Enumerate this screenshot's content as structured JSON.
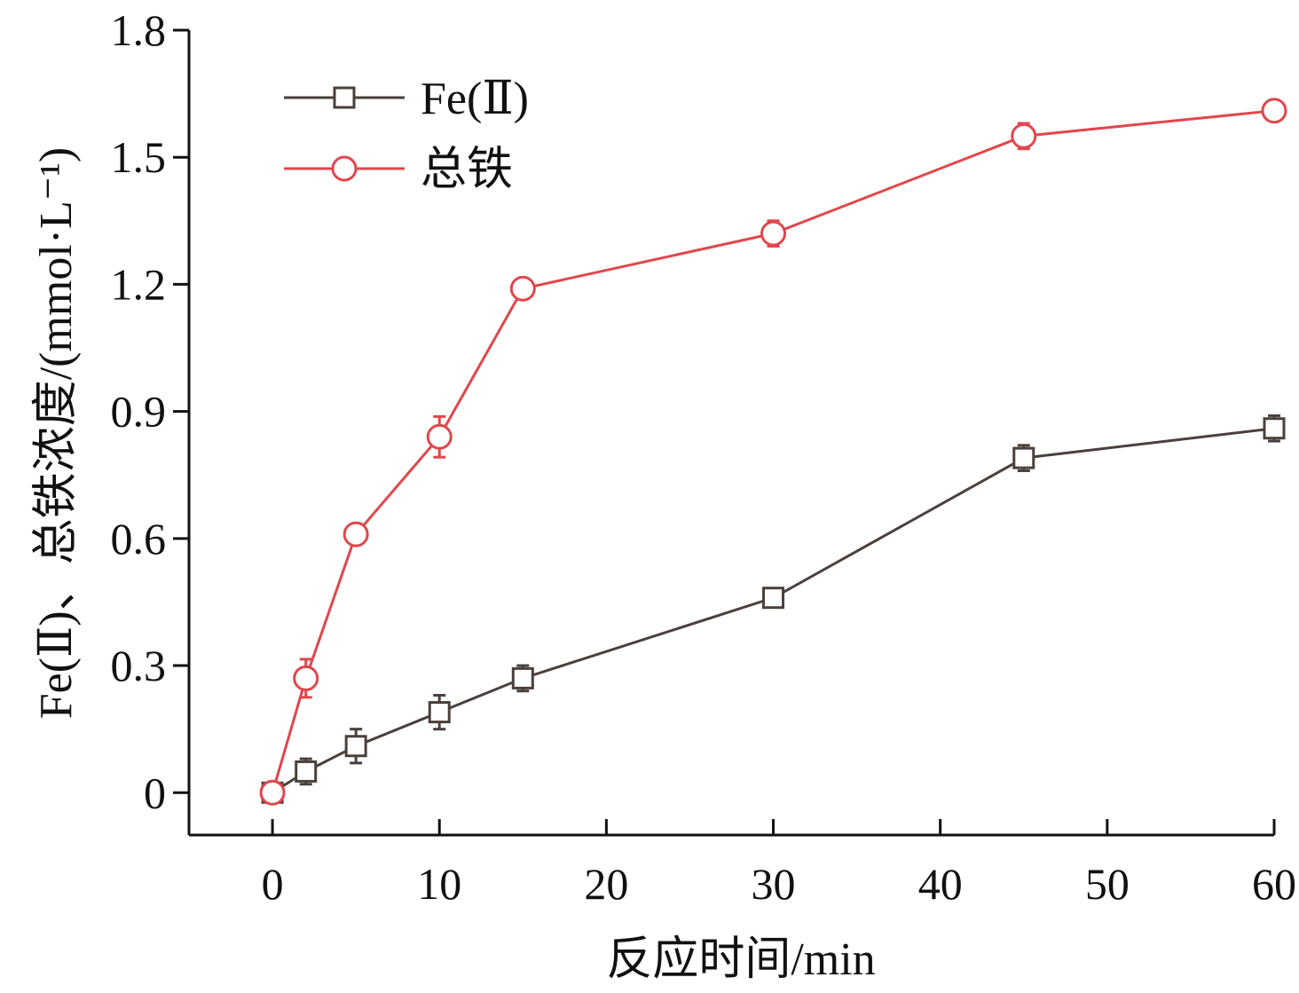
{
  "chart_data": {
    "type": "line",
    "title": "",
    "xlabel": "反应时间/min",
    "ylabel": "Fe(Ⅱ)、总铁浓度/(mmol·L⁻¹)",
    "xlim": [
      -5,
      60
    ],
    "ylim": [
      -0.1,
      1.8
    ],
    "xticks": [
      0,
      10,
      20,
      30,
      40,
      50,
      60
    ],
    "xtick_labels": [
      "0",
      "10",
      "20",
      "30",
      "40",
      "50",
      "60"
    ],
    "yticks": [
      0,
      0.3,
      0.6,
      0.9,
      1.2,
      1.5,
      1.8
    ],
    "ytick_labels": [
      "0",
      "0.3",
      "0.6",
      "0.9",
      "1.2",
      "1.5",
      "1.8"
    ],
    "grid": false,
    "legend": "top-left",
    "x": [
      0,
      2,
      5,
      10,
      15,
      30,
      45,
      60
    ],
    "series": [
      {
        "name": "Fe(Ⅱ)",
        "marker": "square",
        "color": "#4a403c",
        "values": [
          0,
          0.05,
          0.11,
          0.19,
          0.27,
          0.46,
          0.79,
          0.86
        ],
        "errors": [
          0.01,
          0.03,
          0.04,
          0.04,
          0.03,
          0.01,
          0.03,
          0.03
        ]
      },
      {
        "name": "总铁",
        "marker": "circle",
        "color": "#e0474c",
        "values": [
          0,
          0.27,
          0.61,
          0.84,
          1.19,
          1.32,
          1.55,
          1.61
        ],
        "errors": [
          0.01,
          0.045,
          0.01,
          0.048,
          0.02,
          0.03,
          0.03,
          0.01
        ]
      }
    ]
  }
}
